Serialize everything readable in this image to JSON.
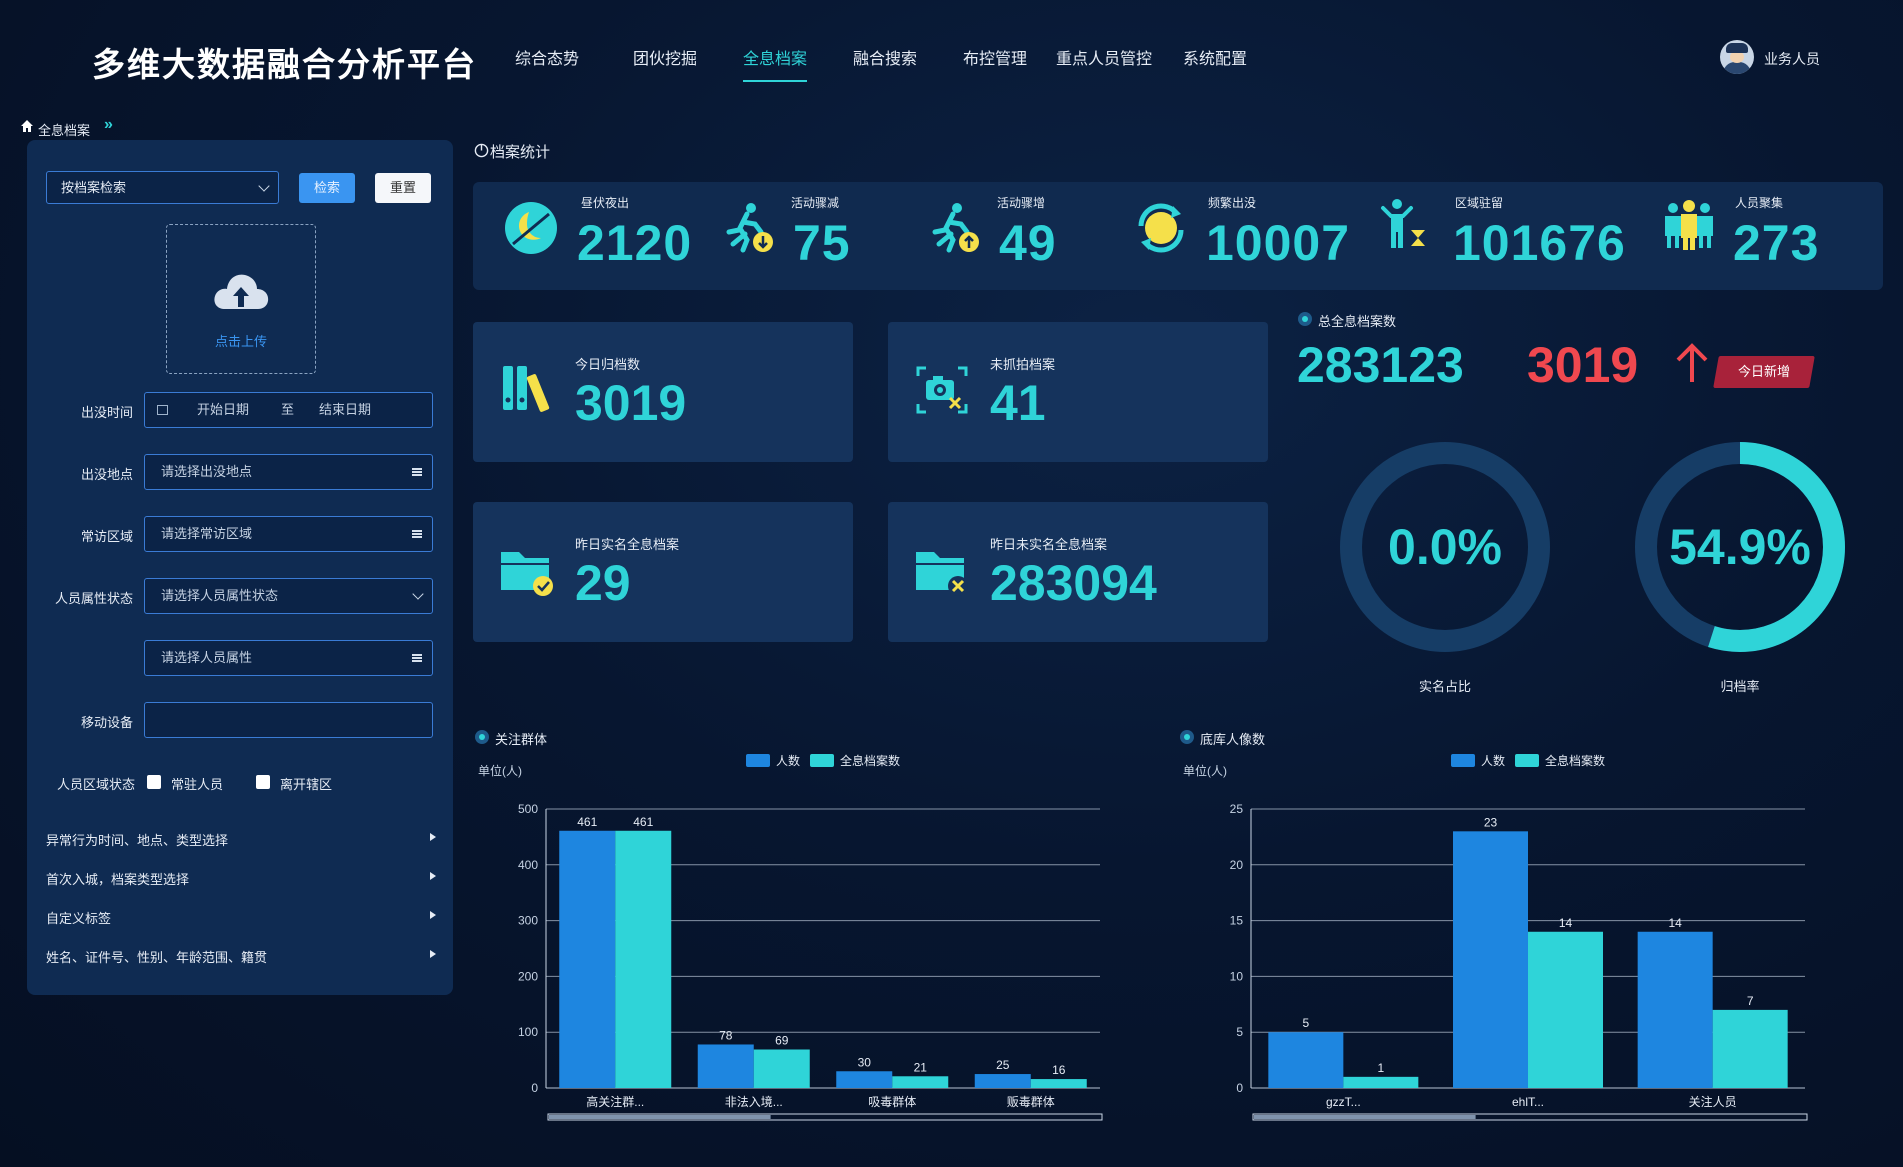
{
  "app_title": "多维大数据融合分析平台",
  "nav": [
    {
      "label": "综合态势",
      "active": false
    },
    {
      "label": "团伙挖掘",
      "active": false
    },
    {
      "label": "全息档案",
      "active": true
    },
    {
      "label": "融合搜索",
      "active": false
    },
    {
      "label": "布控管理",
      "active": false
    },
    {
      "label": "重点人员管控",
      "active": false
    },
    {
      "label": "系统配置",
      "active": false
    }
  ],
  "user": {
    "name": "业务人员",
    "icon": "police-avatar-icon"
  },
  "breadcrumb": {
    "label": "全息档案",
    "icon": "home-icon",
    "suffix": "»"
  },
  "search_panel": {
    "search_type": "按档案检索",
    "search_button": "检索",
    "reset_button": "重置",
    "upload_label": "点击上传",
    "time": {
      "label": "出没时间",
      "start_placeholder": "开始日期",
      "separator": "至",
      "end_placeholder": "结束日期"
    },
    "location": {
      "label": "出没地点",
      "placeholder": "请选择出没地点"
    },
    "area": {
      "label": "常访区域",
      "placeholder": "请选择常访区域"
    },
    "attr_status": {
      "label": "人员属性状态",
      "placeholder": "请选择人员属性状态"
    },
    "attr": {
      "placeholder": "请选择人员属性"
    },
    "device": {
      "label": "移动设备",
      "value": ""
    },
    "region_status": {
      "label": "人员区域状态",
      "options": [
        "常驻人员",
        "离开辖区"
      ]
    },
    "collapsibles": [
      "异常行为时间、地点、类型选择",
      "首次入城，档案类型选择",
      "自定义标签",
      "姓名、证件号、性别、年龄范围、籍贯"
    ]
  },
  "stats_section_title": "档案统计",
  "stats": [
    {
      "label": "昼伏夜出",
      "value": "2120",
      "icon": "moon-icon"
    },
    {
      "label": "活动骤减",
      "value": "75",
      "icon": "running-down-icon"
    },
    {
      "label": "活动骤增",
      "value": "49",
      "icon": "running-up-icon"
    },
    {
      "label": "频繁出没",
      "value": "10007",
      "icon": "refresh-cycle-icon"
    },
    {
      "label": "区域驻留",
      "value": "101676",
      "icon": "person-hourglass-icon"
    },
    {
      "label": "人员聚集",
      "value": "273",
      "icon": "group-people-icon"
    }
  ],
  "cards": [
    {
      "label": "今日归档数",
      "value": "3019",
      "icon": "binders-icon"
    },
    {
      "label": "未抓拍档案",
      "value": "41",
      "icon": "camera-x-icon"
    },
    {
      "label": "昨日实名全息档案",
      "value": "29",
      "icon": "folder-check-icon"
    },
    {
      "label": "昨日未实名全息档案",
      "value": "283094",
      "icon": "folder-x-icon"
    }
  ],
  "total": {
    "title": "总全息档案数",
    "value": "283123",
    "new_value": "3019",
    "badge": "今日新增"
  },
  "donuts": [
    {
      "value_text": "0.0%",
      "fraction": 0.0,
      "label": "实名占比"
    },
    {
      "value_text": "54.9%",
      "fraction": 0.549,
      "label": "归档率"
    }
  ],
  "colors": {
    "accent": "#2fd4d8",
    "blue": "#1e86e0",
    "red": "#f0484f",
    "ring": "#163d66"
  },
  "chart_data": [
    {
      "type": "bar",
      "title": "关注群体",
      "ylabel": "单位(人)",
      "categories": [
        "高关注群...",
        "非法入境...",
        "吸毒群体",
        "贩毒群体"
      ],
      "series": [
        {
          "name": "人数",
          "values": [
            461,
            78,
            30,
            25
          ]
        },
        {
          "name": "全息档案数",
          "values": [
            461,
            69,
            21,
            16
          ]
        }
      ],
      "ylim": [
        0,
        500
      ],
      "yticks": [
        0,
        100,
        200,
        300,
        400,
        500
      ],
      "legend": "top-center",
      "grid": true
    },
    {
      "type": "bar",
      "title": "底库人像数",
      "ylabel": "单位(人)",
      "categories": [
        "gzzT...",
        "ehlT...",
        "关注人员"
      ],
      "series": [
        {
          "name": "人数",
          "values": [
            5,
            23,
            14
          ]
        },
        {
          "name": "全息档案数",
          "values": [
            1,
            14,
            7
          ]
        }
      ],
      "ylim": [
        0,
        25
      ],
      "yticks": [
        0,
        5,
        10,
        15,
        20,
        25
      ],
      "legend": "top-center",
      "grid": true
    }
  ]
}
